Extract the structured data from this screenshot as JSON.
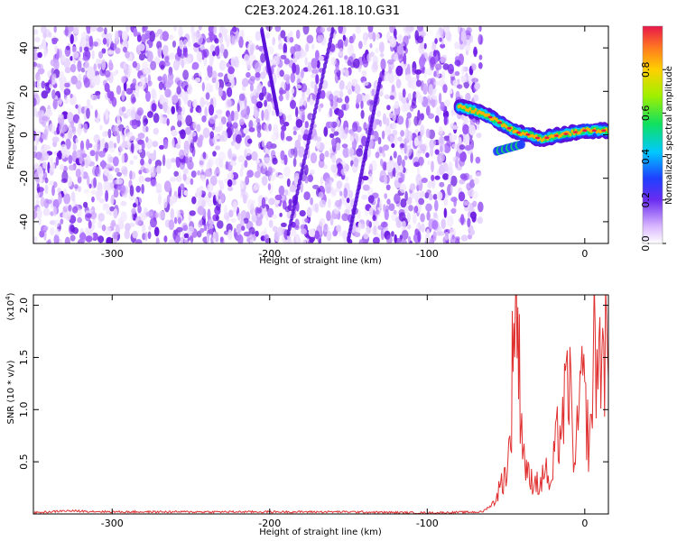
{
  "title": "C2E3.2024.261.18.10.G31",
  "colors": {
    "signal": "#e03030",
    "purple": "#7a22e6"
  },
  "chart_data": [
    {
      "type": "heatmap",
      "xlabel": "Height of straight line (km)",
      "ylabel": "Frequency (Hz)",
      "xlim": [
        -350,
        15
      ],
      "ylim": [
        -50,
        50
      ],
      "xticks": [
        "-300",
        "-200",
        "-100",
        "0"
      ],
      "yticks": [
        "40",
        "20",
        "0",
        "-20",
        "-40"
      ],
      "colorbar_label": "Normalized spectral amplitude",
      "colorbar_ticks": [
        "0.8",
        "0.6",
        "0.4",
        "0.2",
        "0.0"
      ],
      "colorbar_range": [
        0,
        1
      ],
      "noise_region_x": [
        -350,
        -70
      ],
      "signal_track": [
        {
          "x": -80,
          "y": 13
        },
        {
          "x": -70,
          "y": 11
        },
        {
          "x": -62,
          "y": 9
        },
        {
          "x": -55,
          "y": 6
        },
        {
          "x": -48,
          "y": 3
        },
        {
          "x": -42,
          "y": 1
        },
        {
          "x": -35,
          "y": 0
        },
        {
          "x": -28,
          "y": -2
        },
        {
          "x": -22,
          "y": -1
        },
        {
          "x": -15,
          "y": 0
        },
        {
          "x": -8,
          "y": 1
        },
        {
          "x": 0,
          "y": 2
        },
        {
          "x": 8,
          "y": 2
        },
        {
          "x": 15,
          "y": 2
        }
      ],
      "faint_streaks": [
        {
          "x0": -188,
          "y0": -45,
          "x1": -160,
          "y1": 48
        },
        {
          "x0": -150,
          "y0": -48,
          "x1": -130,
          "y1": 25
        },
        {
          "x0": -205,
          "y0": 48,
          "x1": -195,
          "y1": 10
        }
      ]
    },
    {
      "type": "line",
      "xlabel": "Height of straight line (km)",
      "ylabel": "SNR (10 * v/v)",
      "y_multiplier": "(x10",
      "y_multiplier_exp": "4",
      "y_multiplier_close": ")",
      "xlim": [
        -350,
        15
      ],
      "ylim": [
        0,
        2.1
      ],
      "xticks": [
        "-300",
        "-200",
        "-100",
        "0"
      ],
      "yticks": [
        "2.0",
        "1.5",
        "1.0",
        "0.5"
      ],
      "series": [
        {
          "x": [
            -350,
            -340,
            -330,
            -300,
            -250,
            -200,
            -150,
            -100,
            -65,
            -58,
            -54,
            -50,
            -47,
            -45,
            -43,
            -41,
            -39,
            -37,
            -35,
            -32,
            -28,
            -25,
            -22,
            -18,
            -14,
            -10,
            -6,
            -3,
            0,
            3,
            6,
            9,
            12,
            15
          ],
          "y": [
            0.01,
            0.02,
            0.03,
            0.02,
            0.02,
            0.02,
            0.02,
            0.01,
            0.02,
            0.1,
            0.25,
            0.4,
            0.7,
            2.1,
            1.9,
            1.2,
            0.6,
            0.45,
            0.3,
            0.35,
            0.25,
            0.5,
            0.2,
            0.7,
            0.9,
            1.3,
            0.4,
            1.2,
            1.1,
            0.6,
            1.6,
            1.4,
            1.7,
            1.3
          ]
        }
      ]
    }
  ]
}
